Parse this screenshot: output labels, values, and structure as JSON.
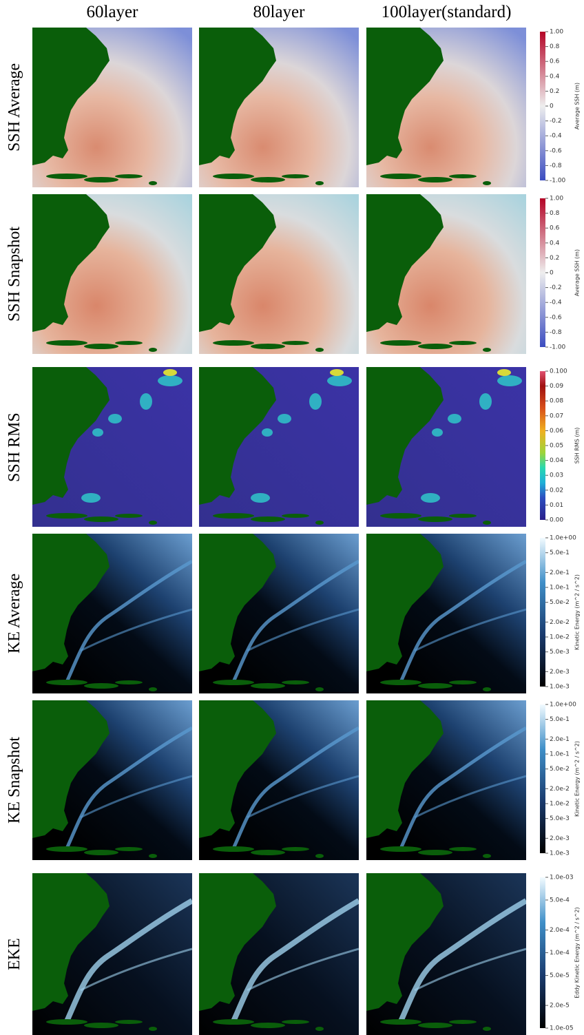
{
  "columns": [
    "60layer",
    "80layer",
    "100layer(standard)"
  ],
  "rows": [
    {
      "label": "SSH Average",
      "colorbar": {
        "title": "Average SSH (m)",
        "scale": "linear",
        "range": [
          -1,
          1
        ],
        "ticks": [
          {
            "value": 1,
            "label": "1.00"
          },
          0.8,
          0.6,
          0.4,
          0.2,
          0,
          -0.2,
          -0.4,
          -0.6,
          -0.8,
          {
            "value": -1,
            "label": "-1.00"
          }
        ]
      }
    },
    {
      "label": "SSH Snapshot",
      "colorbar": {
        "title": "Average SSH (m)",
        "scale": "linear",
        "range": [
          -1,
          1
        ],
        "ticks": [
          {
            "value": 1,
            "label": "1.00"
          },
          0.8,
          0.6,
          0.4,
          0.2,
          0,
          -0.2,
          -0.4,
          -0.6,
          -0.8,
          {
            "value": -1,
            "label": "-1.00"
          }
        ]
      }
    },
    {
      "label": "SSH RMS",
      "colorbar": {
        "title": "SSH RMS (m)",
        "scale": "linear",
        "range": [
          0,
          0.1
        ],
        "ticks": [
          {
            "value": 0.1,
            "label": "0.100"
          },
          0.09,
          0.08,
          0.07,
          0.06,
          0.05,
          0.04,
          0.03,
          0.02,
          0.01,
          {
            "value": 0,
            "label": "0.00"
          }
        ]
      }
    },
    {
      "label": "KE Average",
      "colorbar": {
        "title": "Kinetic Energy (m^2 / s^2)",
        "scale": "log",
        "range": [
          0.001,
          1
        ],
        "ticks": [
          {
            "value": 1,
            "label": "1.0e+00"
          },
          {
            "value": 0.5,
            "label": "5.0e-1"
          },
          {
            "value": 0.2,
            "label": "2.0e-1"
          },
          {
            "value": 0.1,
            "label": "1.0e-1"
          },
          {
            "value": 0.05,
            "label": "5.0e-2"
          },
          {
            "value": 0.02,
            "label": "2.0e-2"
          },
          {
            "value": 0.01,
            "label": "1.0e-2"
          },
          {
            "value": 0.005,
            "label": "5.0e-3"
          },
          {
            "value": 0.002,
            "label": "2.0e-3"
          },
          {
            "value": 0.001,
            "label": "1.0e-3"
          }
        ]
      }
    },
    {
      "label": "KE Snapshot",
      "colorbar": {
        "title": "Kinetic Energy (m^2 / s^2)",
        "scale": "log",
        "range": [
          0.001,
          1
        ],
        "ticks": [
          {
            "value": 1,
            "label": "1.0e+00"
          },
          {
            "value": 0.5,
            "label": "5.0e-1"
          },
          {
            "value": 0.2,
            "label": "2.0e-1"
          },
          {
            "value": 0.1,
            "label": "1.0e-1"
          },
          {
            "value": 0.05,
            "label": "5.0e-2"
          },
          {
            "value": 0.02,
            "label": "2.0e-2"
          },
          {
            "value": 0.01,
            "label": "1.0e-2"
          },
          {
            "value": 0.005,
            "label": "5.0e-3"
          },
          {
            "value": 0.002,
            "label": "2.0e-3"
          },
          {
            "value": 0.001,
            "label": "1.0e-3"
          }
        ]
      }
    },
    {
      "label": "EKE",
      "colorbar": {
        "title": "Eddy Kinetic Energy (m^2 / s^2)",
        "scale": "log",
        "range": [
          1e-05,
          0.001
        ],
        "ticks": [
          {
            "value": 0.001,
            "label": "1.0e-03"
          },
          {
            "value": 0.0005,
            "label": "5.0e-4"
          },
          {
            "value": 0.0002,
            "label": "2.0e-4"
          },
          {
            "value": 0.0001,
            "label": "1.0e-4"
          },
          {
            "value": 5e-05,
            "label": "5.0e-5"
          },
          {
            "value": 2e-05,
            "label": "2.0e-5"
          },
          {
            "value": 1e-05,
            "label": "1.0e-05"
          }
        ]
      }
    }
  ]
}
